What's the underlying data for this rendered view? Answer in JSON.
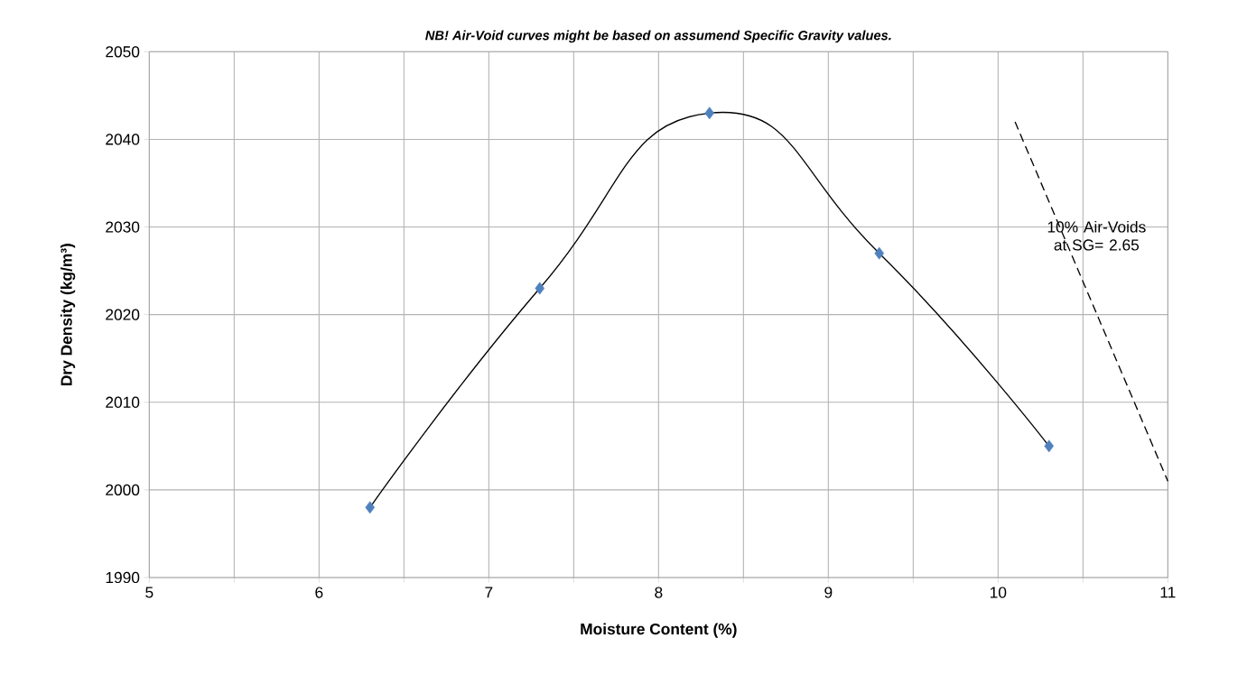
{
  "chart_data": {
    "type": "scatter",
    "title": "NB! Air-Void curves might be based on assumend Specific Gravity values.",
    "xlabel": "Moisture Content (%)",
    "ylabel": "Dry Density (kg/m³)",
    "xlim": [
      5,
      11
    ],
    "ylim": [
      1990,
      2050
    ],
    "xticks": [
      5,
      {
        "value": 5.5,
        "label": null
      },
      6,
      {
        "value": 6.5,
        "label": null
      },
      7,
      {
        "value": 7.5,
        "label": null
      },
      8,
      {
        "value": 8.5,
        "label": null
      },
      9,
      {
        "value": 9.5,
        "label": null
      },
      10,
      {
        "value": 10.5,
        "label": null
      },
      11
    ],
    "yticks": [
      1990,
      2000,
      2010,
      2020,
      2030,
      2040,
      2050
    ],
    "grid": true,
    "series": [
      {
        "type": "line",
        "color": "#000000",
        "marker": "none",
        "line_style": "solid",
        "x": [
          6.3,
          7.3,
          8.3,
          9.3,
          10.3
        ],
        "values": [
          1998,
          2023,
          2043,
          2027,
          2005
        ]
      },
      {
        "color": "#4f81bd",
        "marker": "diamond",
        "x": [
          6.3,
          7.3,
          8.3,
          9.3,
          10.3
        ],
        "values": [
          1998,
          2023,
          2043,
          2027,
          2005
        ]
      },
      {
        "type": "line",
        "color": "#000000",
        "marker": "none",
        "line_style": "dashed",
        "x": [
          10.1,
          11
        ],
        "values": [
          2042,
          2001
        ]
      }
    ],
    "annotations": [
      "10% Air-Voids at SG= 2.65"
    ]
  }
}
